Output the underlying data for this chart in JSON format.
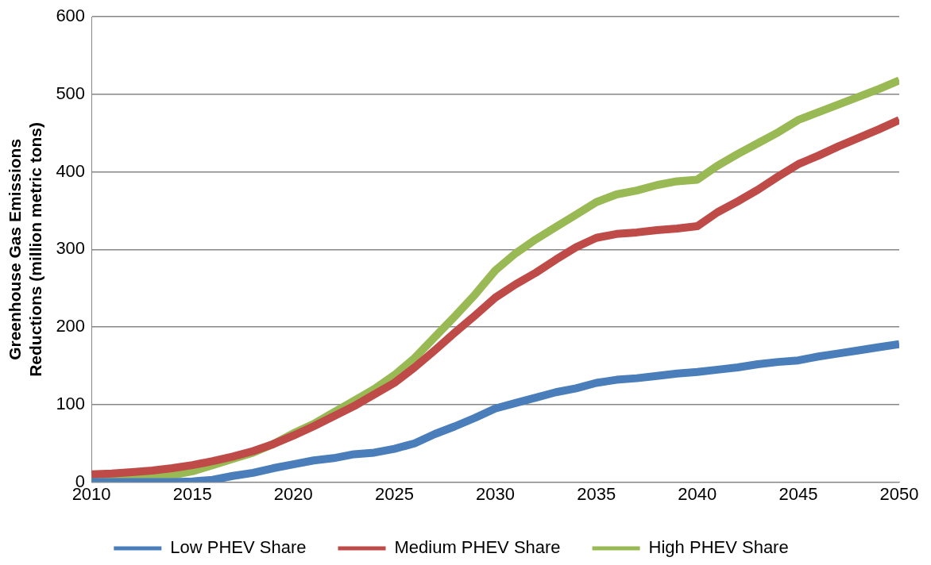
{
  "chart_data": {
    "type": "line",
    "ylabel": "Greenhouse Gas Emissions Reductions (million metric tons)",
    "x": [
      2010,
      2011,
      2012,
      2013,
      2014,
      2015,
      2016,
      2017,
      2018,
      2019,
      2020,
      2021,
      2022,
      2023,
      2024,
      2025,
      2026,
      2027,
      2028,
      2029,
      2030,
      2031,
      2032,
      2033,
      2034,
      2035,
      2036,
      2037,
      2038,
      2039,
      2040,
      2041,
      2042,
      2043,
      2044,
      2045,
      2046,
      2047,
      2048,
      2049,
      2050
    ],
    "series": [
      {
        "name": "Low PHEV Share",
        "color": "#4a7ebb",
        "values": [
          0,
          0,
          0,
          0,
          0,
          1,
          3,
          8,
          12,
          18,
          23,
          28,
          31,
          36,
          38,
          43,
          50,
          62,
          72,
          83,
          95,
          102,
          109,
          116,
          121,
          128,
          132,
          134,
          137,
          140,
          142,
          145,
          148,
          152,
          155,
          157,
          162,
          166,
          170,
          174,
          178
        ]
      },
      {
        "name": "Medium PHEV Share",
        "color": "#be4b48",
        "values": [
          10,
          11,
          13,
          15,
          18,
          22,
          27,
          33,
          40,
          49,
          60,
          72,
          85,
          98,
          113,
          128,
          148,
          170,
          193,
          215,
          238,
          255,
          270,
          287,
          303,
          315,
          320,
          322,
          325,
          327,
          330,
          348,
          362,
          377,
          394,
          410,
          421,
          433,
          444,
          455,
          467
        ]
      },
      {
        "name": "High PHEV Share",
        "color": "#98b954",
        "values": [
          5,
          5,
          6,
          7,
          9,
          14,
          22,
          30,
          38,
          49,
          63,
          75,
          90,
          105,
          120,
          138,
          160,
          187,
          214,
          242,
          273,
          295,
          313,
          329,
          345,
          361,
          371,
          376,
          383,
          388,
          390,
          408,
          423,
          437,
          451,
          467,
          477,
          487,
          497,
          507,
          518
        ]
      }
    ],
    "xlim": [
      2010,
      2050
    ],
    "xticks": [
      2010,
      2015,
      2020,
      2025,
      2030,
      2035,
      2040,
      2045,
      2050
    ],
    "ylim": [
      0,
      600
    ],
    "yticks": [
      0,
      100,
      200,
      300,
      400,
      500,
      600
    ],
    "grid": "y",
    "legend": "bottom",
    "marker": "none",
    "line_style": "solid"
  }
}
